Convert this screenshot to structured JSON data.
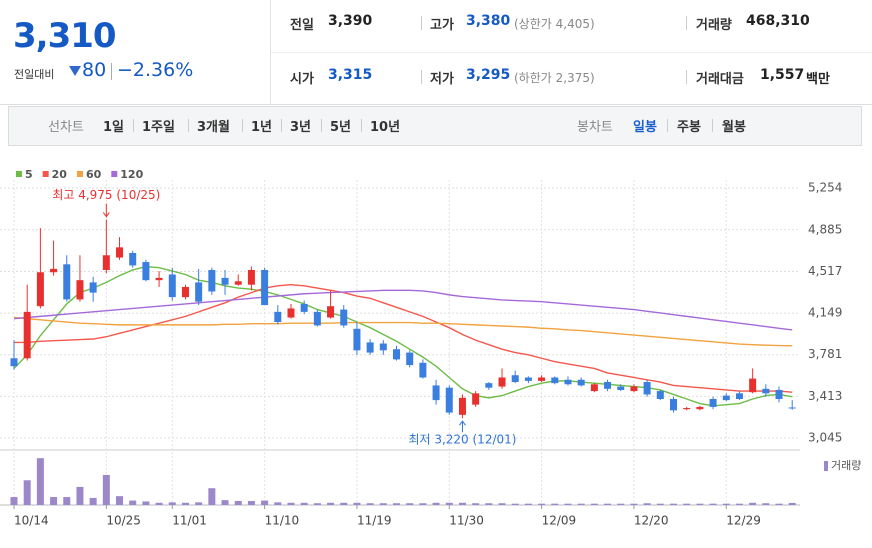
{
  "header": {
    "price": "3,310",
    "change_label": "전일대비",
    "change": "80",
    "change_rate": "−2.36%",
    "stats": [
      {
        "label": "전일",
        "value": "3,390"
      },
      {
        "label": "고가",
        "value": "3,380",
        "note": "(상한가 4,405)"
      },
      {
        "label": "거래량",
        "value": "468,310"
      },
      {
        "label": "시가",
        "value": "3,315"
      },
      {
        "label": "저가",
        "value": "3,295",
        "note": "(하한가 2,375)"
      },
      {
        "label": "거래대금",
        "value": "1,557",
        "unit": "백만"
      }
    ]
  },
  "toolbar": {
    "line_label": "선차트",
    "line_periods": [
      "1일",
      "1주일",
      "3개월",
      "1년",
      "3년",
      "5년",
      "10년"
    ],
    "candle_label": "봉차트",
    "candle_periods": [
      "일봉",
      "주봉",
      "월봉"
    ],
    "selected_candle_period": 0
  },
  "chart_data": {
    "type": "candlestick",
    "categories": [
      "10/14",
      null,
      null,
      null,
      null,
      null,
      null,
      "10/25",
      null,
      null,
      null,
      null,
      "11/01",
      null,
      null,
      null,
      null,
      null,
      null,
      "11/10",
      null,
      null,
      null,
      null,
      null,
      null,
      "11/19",
      null,
      null,
      null,
      null,
      null,
      null,
      "11/30",
      null,
      null,
      null,
      null,
      null,
      null,
      "12/09",
      null,
      null,
      null,
      null,
      null,
      null,
      "12/20",
      null,
      null,
      null,
      null,
      null,
      null,
      "12/29",
      null,
      null,
      null,
      null,
      null
    ],
    "open": [
      3750,
      3750,
      4210,
      4510,
      4580,
      4270,
      4420,
      4530,
      4640,
      4680,
      4600,
      4440,
      4490,
      4290,
      4420,
      4530,
      4460,
      4400,
      4400,
      4530,
      4160,
      4110,
      4230,
      4160,
      4110,
      4180,
      4010,
      3890,
      3880,
      3830,
      3800,
      3710,
      3510,
      3490,
      3250,
      3340,
      3530,
      3500,
      3600,
      3580,
      3550,
      3580,
      3560,
      3560,
      3460,
      3540,
      3500,
      3460,
      3540,
      3460,
      3390,
      3300,
      3300,
      3390,
      3420,
      3440,
      3450,
      3480,
      3470,
      3315
    ],
    "high": [
      3910,
      4400,
      4900,
      4790,
      4660,
      4660,
      4470,
      4975,
      4820,
      4700,
      4620,
      4520,
      4550,
      4400,
      4540,
      4550,
      4530,
      4490,
      4560,
      4550,
      4220,
      4230,
      4260,
      4180,
      4350,
      4220,
      4070,
      3920,
      3910,
      3860,
      3820,
      3740,
      3560,
      3510,
      3430,
      3460,
      3540,
      3660,
      3640,
      3590,
      3600,
      3590,
      3590,
      3580,
      3530,
      3560,
      3520,
      3520,
      3560,
      3470,
      3410,
      3320,
      3330,
      3410,
      3440,
      3460,
      3660,
      3520,
      3500,
      3380
    ],
    "low": [
      3650,
      3730,
      4190,
      4480,
      4250,
      4250,
      4250,
      4500,
      4620,
      4550,
      4430,
      4380,
      4260,
      4270,
      4220,
      4310,
      4310,
      4390,
      4350,
      4220,
      4050,
      4100,
      4140,
      4030,
      4100,
      4020,
      3780,
      3780,
      3780,
      3730,
      3670,
      3570,
      3340,
      3250,
      3220,
      3320,
      3470,
      3480,
      3530,
      3530,
      3540,
      3520,
      3510,
      3500,
      3450,
      3460,
      3460,
      3450,
      3410,
      3380,
      3270,
      3290,
      3290,
      3300,
      3370,
      3380,
      3440,
      3410,
      3360,
      3295
    ],
    "close": [
      3680,
      4160,
      4510,
      4540,
      4270,
      4440,
      4330,
      4660,
      4730,
      4570,
      4440,
      4460,
      4290,
      4380,
      4250,
      4340,
      4400,
      4430,
      4530,
      4220,
      4070,
      4190,
      4160,
      4040,
      4210,
      4040,
      3820,
      3800,
      3820,
      3740,
      3690,
      3580,
      3380,
      3270,
      3400,
      3440,
      3490,
      3580,
      3540,
      3550,
      3580,
      3530,
      3520,
      3510,
      3520,
      3480,
      3470,
      3500,
      3430,
      3390,
      3290,
      3310,
      3320,
      3320,
      3380,
      3390,
      3570,
      3440,
      3390,
      3310
    ],
    "up_color": "#e8312f",
    "down_color": "#3a7ee0",
    "moving_averages": [
      {
        "name": "5",
        "color": "#6cbd45",
        "values": [
          3660,
          3780,
          3950,
          4090,
          4230,
          4330,
          4370,
          4420,
          4480,
          4530,
          4560,
          4550,
          4520,
          4490,
          4440,
          4420,
          4390,
          4370,
          4360,
          4340,
          4310,
          4270,
          4230,
          4180,
          4150,
          4120,
          4070,
          4020,
          3960,
          3900,
          3830,
          3760,
          3680,
          3580,
          3480,
          3420,
          3400,
          3420,
          3460,
          3500,
          3530,
          3550,
          3550,
          3540,
          3530,
          3520,
          3510,
          3500,
          3490,
          3470,
          3430,
          3390,
          3350,
          3330,
          3340,
          3350,
          3390,
          3420,
          3430,
          3410
        ]
      },
      {
        "name": "20",
        "color": "#f4574b",
        "values": [
          3890,
          3890,
          3900,
          3905,
          3910,
          3915,
          3920,
          3940,
          3970,
          4000,
          4030,
          4060,
          4090,
          4120,
          4160,
          4200,
          4240,
          4290,
          4330,
          4370,
          4390,
          4400,
          4390,
          4370,
          4350,
          4330,
          4300,
          4280,
          4240,
          4200,
          4160,
          4120,
          4070,
          4020,
          3960,
          3910,
          3870,
          3830,
          3800,
          3780,
          3750,
          3720,
          3700,
          3680,
          3660,
          3620,
          3600,
          3580,
          3560,
          3540,
          3510,
          3500,
          3490,
          3480,
          3470,
          3460,
          3460,
          3460,
          3460,
          3450
        ]
      },
      {
        "name": "60",
        "color": "#f2a23e",
        "values": [
          4110,
          4100,
          4090,
          4080,
          4070,
          4060,
          4055,
          4050,
          4045,
          4045,
          4045,
          4045,
          4045,
          4045,
          4045,
          4045,
          4050,
          4050,
          4055,
          4055,
          4055,
          4060,
          4060,
          4060,
          4060,
          4065,
          4065,
          4065,
          4065,
          4065,
          4065,
          4060,
          4060,
          4055,
          4050,
          4045,
          4040,
          4035,
          4030,
          4025,
          4015,
          4010,
          4000,
          3995,
          3985,
          3975,
          3965,
          3955,
          3945,
          3935,
          3925,
          3915,
          3905,
          3895,
          3885,
          3875,
          3870,
          3865,
          3862,
          3860
        ]
      },
      {
        "name": "120",
        "color": "#a46ad9",
        "values": [
          4100,
          4110,
          4120,
          4130,
          4140,
          4150,
          4160,
          4170,
          4180,
          4190,
          4200,
          4210,
          4220,
          4230,
          4240,
          4250,
          4260,
          4270,
          4280,
          4290,
          4300,
          4310,
          4320,
          4325,
          4330,
          4335,
          4340,
          4345,
          4350,
          4350,
          4350,
          4345,
          4330,
          4310,
          4295,
          4285,
          4275,
          4265,
          4260,
          4255,
          4250,
          4240,
          4230,
          4220,
          4210,
          4200,
          4190,
          4180,
          4165,
          4150,
          4135,
          4120,
          4105,
          4090,
          4075,
          4060,
          4045,
          4030,
          4015,
          4000
        ]
      }
    ],
    "volume": {
      "name": "거래량",
      "color": "#9b87c9",
      "ylim": [
        0,
        12000000
      ],
      "values": [
        1800000,
        5600000,
        10600000,
        1800000,
        1800000,
        4100000,
        1600000,
        6800000,
        2000000,
        1000000,
        800000,
        500000,
        600000,
        500000,
        600000,
        3800000,
        1100000,
        900000,
        900000,
        1000000,
        600000,
        500000,
        500000,
        400000,
        500000,
        500000,
        500000,
        400000,
        400000,
        400000,
        400000,
        400000,
        500000,
        500000,
        500000,
        400000,
        400000,
        400000,
        300000,
        300000,
        300000,
        300000,
        300000,
        300000,
        300000,
        300000,
        300000,
        300000,
        400000,
        300000,
        300000,
        300000,
        300000,
        300000,
        300000,
        300000,
        500000,
        400000,
        300000,
        468310
      ]
    },
    "ylim": [
      2957,
      5325
    ],
    "yticks": [
      {
        "value": 5254,
        "label": "5,254"
      },
      {
        "value": 4885,
        "label": "4,885"
      },
      {
        "value": 4517,
        "label": "4,517"
      },
      {
        "value": 4149,
        "label": "4,149"
      },
      {
        "value": 3781,
        "label": "3,781"
      },
      {
        "value": 3413,
        "label": "3,413"
      },
      {
        "value": 3045,
        "label": "3,045"
      }
    ],
    "grid": true,
    "annotations": [
      {
        "text": "최고 4,975 (10/25)",
        "target": "high",
        "value": 4975,
        "color": "#e8312f"
      },
      {
        "text": "최저 3,220 (12/01)",
        "target": "low",
        "value": 3220,
        "color": "#2f74d6"
      }
    ]
  }
}
